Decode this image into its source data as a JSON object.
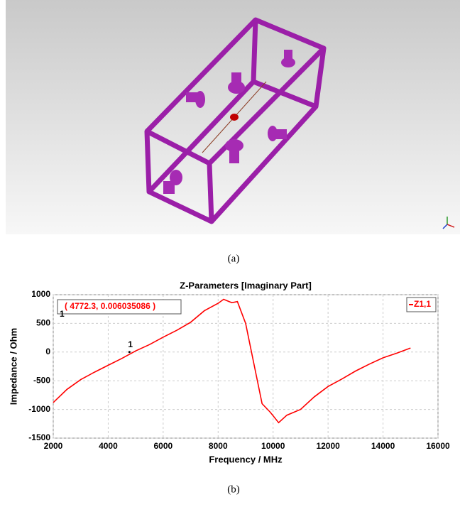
{
  "figure_a": {
    "caption": "(a)"
  },
  "chart_data": {
    "type": "line",
    "title": "Z-Parameters [Imaginary Part]",
    "x_label": "Frequency / MHz",
    "y_label": "Impedance / Ohm",
    "x": [
      2000,
      2500,
      3000,
      3500,
      4000,
      4500,
      5000,
      5500,
      6000,
      6500,
      7000,
      7500,
      8000,
      8200,
      8500,
      8700,
      9000,
      9300,
      9600,
      9900,
      10200,
      10500,
      11000,
      11500,
      12000,
      12500,
      13000,
      13500,
      14000,
      14500,
      15000
    ],
    "series": [
      {
        "name": "Z1,1",
        "color": "#ff0000",
        "values": [
          -880,
          -650,
          -480,
          -350,
          -230,
          -110,
          20,
          130,
          260,
          380,
          520,
          720,
          850,
          920,
          860,
          880,
          500,
          -200,
          -900,
          -1050,
          -1230,
          -1100,
          -1000,
          -780,
          -600,
          -470,
          -330,
          -210,
          -100,
          -20,
          70
        ]
      }
    ],
    "marker": {
      "id": "1",
      "x": 4772.3,
      "y": 0.006035086,
      "label": "( 4772.3, 0.006035086 )"
    },
    "xlim": [
      2000,
      16000
    ],
    "xticks": [
      2000,
      4000,
      6000,
      8000,
      10000,
      12000,
      14000,
      16000
    ],
    "ylim": [
      -1500,
      1000
    ],
    "yticks": [
      -1500,
      -1000,
      -500,
      0,
      500,
      1000
    ],
    "grid": true,
    "legend": "top-right"
  },
  "figure_b": {
    "caption": "(b)"
  }
}
